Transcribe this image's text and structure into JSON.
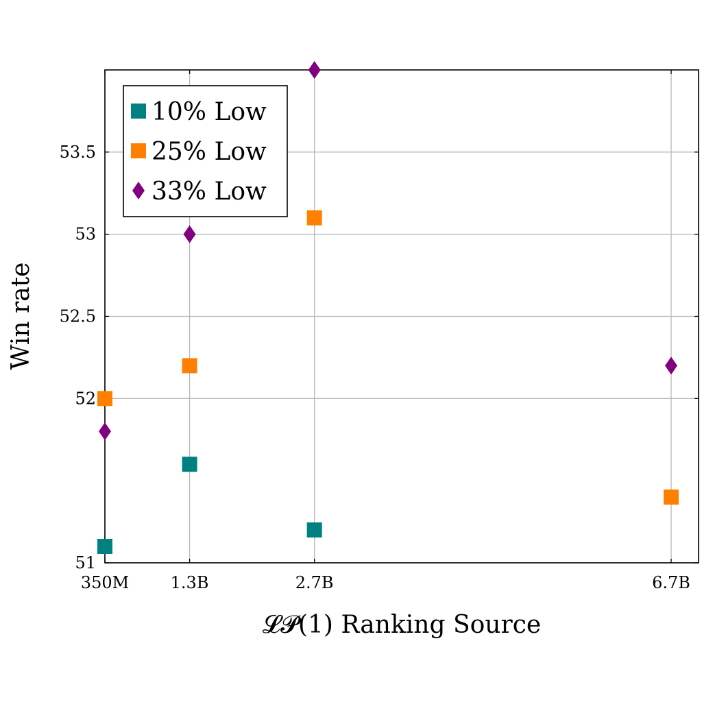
{
  "chart_data": {
    "type": "scatter",
    "xlabel": "𝓛𝓟(1) Ranking Source",
    "ylabel": "Win rate",
    "x_positions": [
      0.35,
      1.3,
      2.7,
      6.7
    ],
    "x_tick_labels": [
      "350M",
      "1.3B",
      "2.7B",
      "6.7B"
    ],
    "y_ticks": [
      51,
      52,
      52.5,
      53,
      53.5
    ],
    "y_tick_labels": [
      "51",
      "52",
      "52.5",
      "53",
      "53.5"
    ],
    "xlim": [
      0.35,
      6.7
    ],
    "ylim": [
      51,
      54
    ],
    "grid": true,
    "legend_position": "top-left",
    "series": [
      {
        "name": "10% Low",
        "marker": "square",
        "color": "#008080",
        "points": [
          {
            "x": 0.35,
            "y": 51.1
          },
          {
            "x": 1.3,
            "y": 51.6
          },
          {
            "x": 2.7,
            "y": 51.2
          }
        ]
      },
      {
        "name": "25% Low",
        "marker": "square",
        "color": "#FF8000",
        "points": [
          {
            "x": 0.35,
            "y": 52.0
          },
          {
            "x": 1.3,
            "y": 52.2
          },
          {
            "x": 2.7,
            "y": 53.1
          },
          {
            "x": 6.7,
            "y": 51.4
          }
        ]
      },
      {
        "name": "33% Low",
        "marker": "diamond",
        "color": "#800080",
        "points": [
          {
            "x": 0.35,
            "y": 51.8
          },
          {
            "x": 1.3,
            "y": 53.0
          },
          {
            "x": 2.7,
            "y": 54.0
          },
          {
            "x": 6.7,
            "y": 52.2
          }
        ]
      }
    ]
  }
}
